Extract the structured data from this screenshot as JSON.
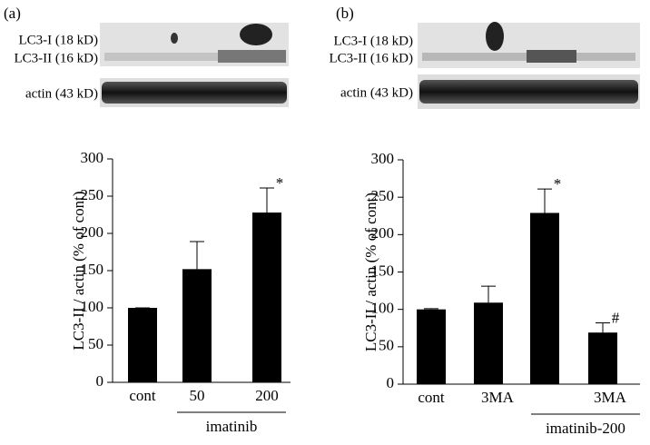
{
  "panels": [
    {
      "label": "(a)",
      "blot_labels": [
        "LC3-I (18 kD)",
        "LC3-II (16 kD)",
        "actin (43 kD)"
      ]
    },
    {
      "label": "(b)",
      "blot_labels": [
        "LC3-I (18 kD)",
        "LC3-II (16 kD)",
        "actin (43 kD)"
      ]
    }
  ],
  "chart_data": [
    {
      "type": "bar",
      "y_label": "LC3-II / actin (% of cont)",
      "categories": [
        "cont",
        "50",
        "200"
      ],
      "values": [
        100,
        152,
        228
      ],
      "errors": [
        0,
        37,
        33
      ],
      "bar_annotations": [
        null,
        null,
        "*"
      ],
      "group_label": "imatinib",
      "color": "#000000",
      "ylim": [
        0,
        300
      ],
      "yticks": [
        0,
        50,
        100,
        150,
        200,
        250,
        300
      ]
    },
    {
      "type": "bar",
      "y_label": "LC3-II / actin (% of cont)",
      "categories": [
        "cont",
        "3MA",
        null,
        "3MA"
      ],
      "values": [
        100,
        109,
        229,
        69
      ],
      "errors": [
        1,
        22,
        32,
        13
      ],
      "bar_annotations": [
        null,
        null,
        "*",
        "#"
      ],
      "group_label": "imatinib-200",
      "color": "#000000",
      "ylim": [
        0,
        300
      ],
      "yticks": [
        0,
        50,
        100,
        150,
        200,
        250,
        300
      ]
    }
  ]
}
